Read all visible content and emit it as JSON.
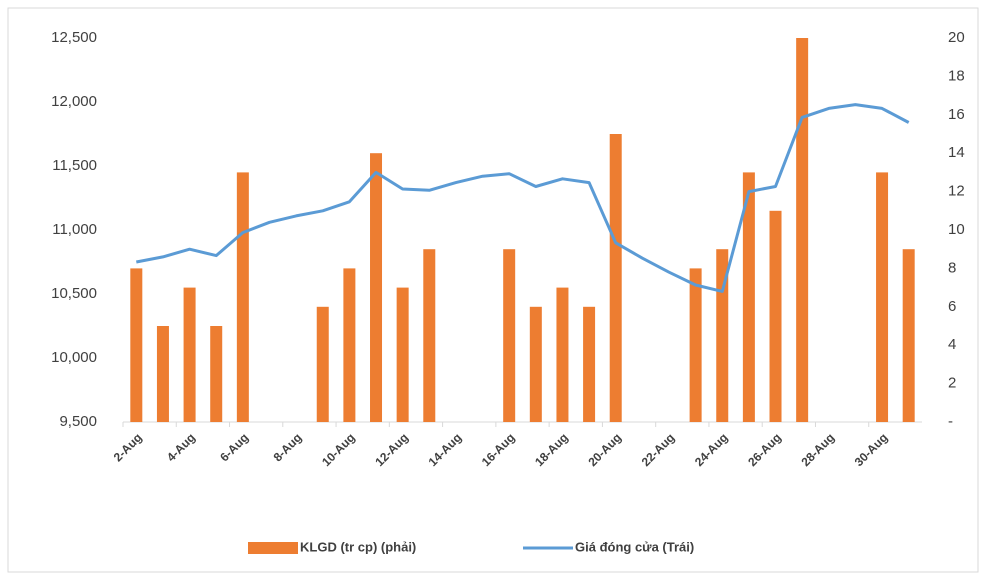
{
  "chart_data": {
    "type": "bar_line",
    "categories": [
      "2-Aug",
      null,
      "4-Aug",
      null,
      "6-Aug",
      null,
      "8-Aug",
      null,
      "10-Aug",
      null,
      "12-Aug",
      null,
      "14-Aug",
      null,
      "16-Aug",
      null,
      "18-Aug",
      null,
      "20-Aug",
      null,
      "22-Aug",
      null,
      "24-Aug",
      null,
      "26-Aug",
      null,
      "28-Aug",
      null,
      "30-Aug",
      null
    ],
    "series": [
      {
        "name": "KLGD (tr cp) (phải)",
        "color": "#ed7d31",
        "kind": "bar",
        "axis": "y2",
        "values": [
          8,
          5,
          7,
          5,
          13,
          null,
          null,
          6,
          8,
          14,
          7,
          9,
          null,
          null,
          9,
          6,
          7,
          6,
          15,
          null,
          null,
          8,
          9,
          13,
          11,
          20,
          null,
          null,
          13,
          9
        ]
      },
      {
        "name": "Giá đóng cửa (Trái)",
        "color": "#5b9bd5",
        "kind": "line",
        "values": [
          10750,
          10790,
          10850,
          10800,
          10980,
          11060,
          11110,
          11150,
          11220,
          11450,
          11320,
          11310,
          11370,
          11420,
          11440,
          11340,
          11400,
          11370,
          10900,
          10780,
          10670,
          10570,
          10520,
          11300,
          11340,
          11880,
          11950,
          11980,
          11950,
          11840
        ]
      }
    ],
    "ylim": [
      9500,
      12500
    ],
    "yticks": [
      {
        "value": 9500,
        "label": "9,500"
      },
      {
        "value": 10000,
        "label": "10,000"
      },
      {
        "value": 10500,
        "label": "10,500"
      },
      {
        "value": 11000,
        "label": "11,000"
      },
      {
        "value": 11500,
        "label": "11,500"
      },
      {
        "value": 12000,
        "label": "12,000"
      },
      {
        "value": 12500,
        "label": "12,500"
      }
    ],
    "y2lim": [
      0,
      20
    ],
    "y2ticks": [
      {
        "value": 0,
        "label": "-"
      },
      2,
      4,
      6,
      8,
      10,
      12,
      14,
      16,
      18,
      20
    ],
    "legend": "bottom"
  }
}
